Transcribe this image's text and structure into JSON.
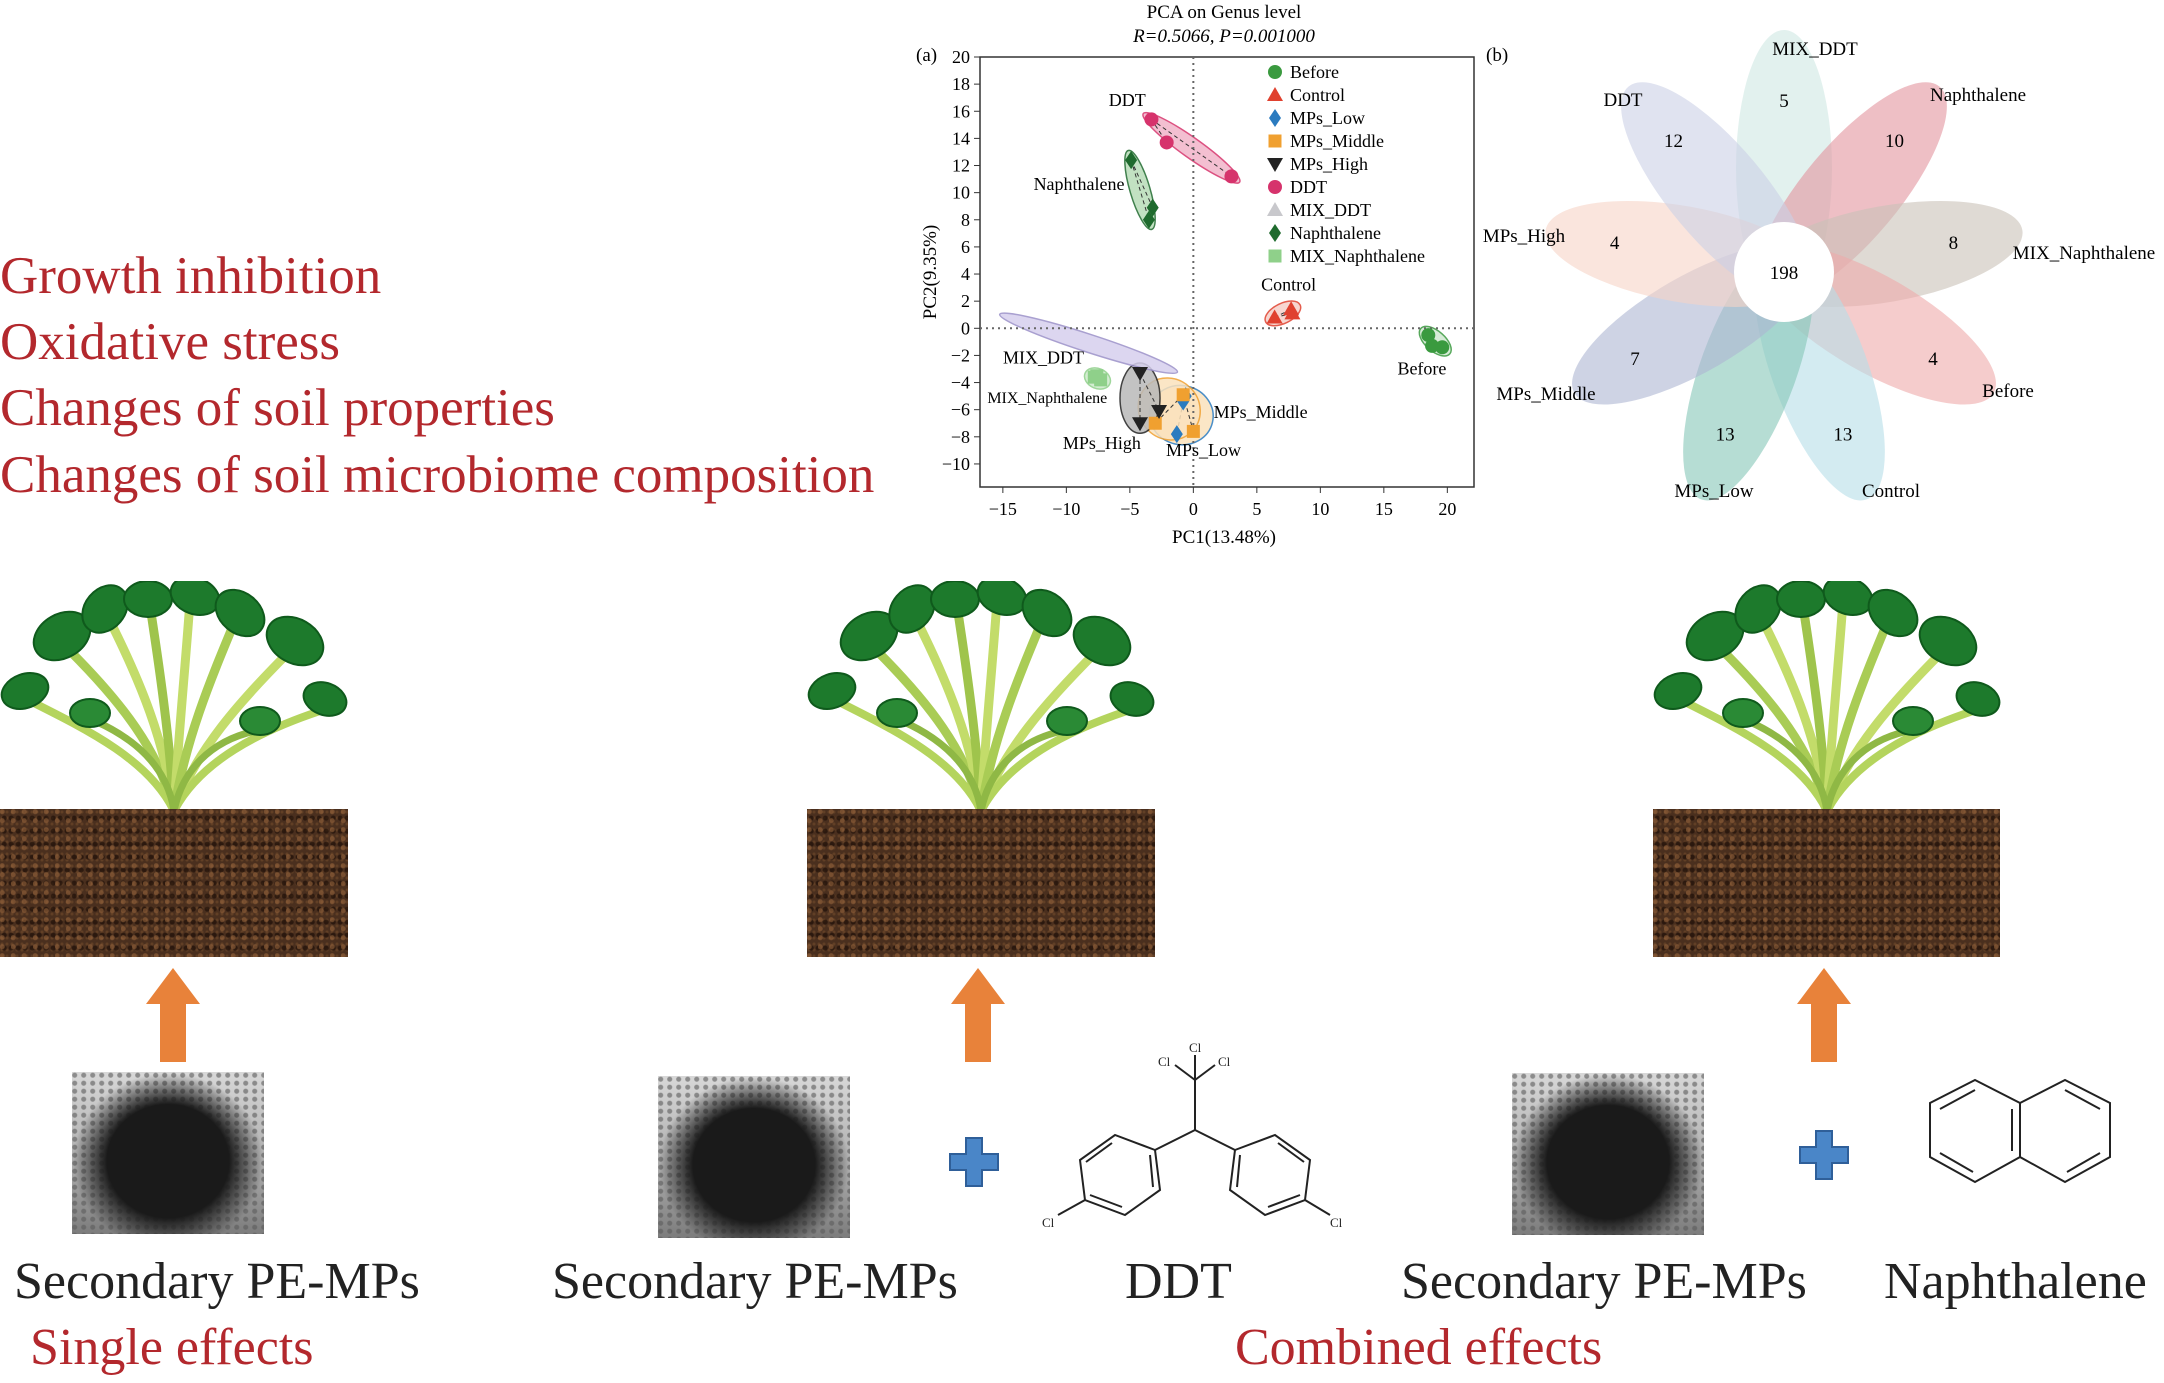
{
  "effects_list": [
    "Growth inhibition",
    "Oxidative stress",
    "Changes of soil properties",
    "Changes of soil microbiome composition"
  ],
  "panel_a": {
    "label": "(a)",
    "title": "PCA on Genus level",
    "subtitle": "R=0.5066, P=0.001000"
  },
  "panel_b": {
    "label": "(b)"
  },
  "chart_data": [
    {
      "type": "scatter",
      "title": "PCA on Genus level",
      "subtitle": "R=0.5066, P=0.001000",
      "xlabel": "PC1(13.48%)",
      "ylabel": "PC2(9.35%)",
      "xlim": [
        -16.8,
        22.1
      ],
      "ylim": [
        -11.7,
        20
      ],
      "xticks": [
        -15,
        -10,
        -5,
        0,
        5,
        10,
        15,
        20
      ],
      "yticks": [
        -10,
        -8,
        -6,
        -4,
        -2,
        0,
        2,
        4,
        6,
        8,
        10,
        12,
        14,
        16,
        18,
        20
      ],
      "reference_lines": {
        "x": 0,
        "y": 0,
        "style": "dotted"
      },
      "confidence_ellipses": true,
      "legend_position": "top-right",
      "series": [
        {
          "name": "Before",
          "marker": "circle",
          "color": "#3a9a3f",
          "points": [
            [
              18.5,
              -0.5
            ],
            [
              18.8,
              -1.3
            ],
            [
              19.6,
              -1.4
            ]
          ]
        },
        {
          "name": "Control",
          "marker": "triangle",
          "color": "#e0412f",
          "points": [
            [
              6.4,
              0.8
            ],
            [
              7.7,
              1.4
            ],
            [
              7.8,
              1.1
            ]
          ]
        },
        {
          "name": "MPs_Low",
          "marker": "diamond",
          "color": "#2b7bbf",
          "points": [
            [
              -0.8,
              -5.4
            ],
            [
              -1.3,
              -7.8
            ],
            [
              -0.6,
              -5.0
            ]
          ]
        },
        {
          "name": "MPs_Middle",
          "marker": "square",
          "color": "#f0a030",
          "points": [
            [
              -0.8,
              -4.9
            ],
            [
              -3.0,
              -7.0
            ],
            [
              0.0,
              -7.6
            ]
          ]
        },
        {
          "name": "MPs_High",
          "marker": "triangle-down",
          "color": "#222222",
          "points": [
            [
              -4.2,
              -3.3
            ],
            [
              -2.7,
              -6.1
            ],
            [
              -4.2,
              -7.0
            ]
          ]
        },
        {
          "name": "DDT",
          "marker": "circle",
          "color": "#d6336c",
          "points": [
            [
              -3.3,
              15.4
            ],
            [
              -2.1,
              13.7
            ],
            [
              3.0,
              11.2
            ]
          ]
        },
        {
          "name": "MIX_DDT",
          "marker": "triangle",
          "color": "#c8c8cc",
          "points": []
        },
        {
          "name": "Naphthalene",
          "marker": "diamond",
          "color": "#1f6b2e",
          "points": [
            [
              -4.9,
              12.4
            ],
            [
              -3.2,
              8.9
            ],
            [
              -3.5,
              8.0
            ]
          ]
        },
        {
          "name": "MIX_Naphthalene",
          "marker": "square",
          "color": "#8fd08a",
          "points": [
            [
              -7.6,
              -3.5
            ],
            [
              -7.3,
              -3.8
            ],
            [
              -7.8,
              -3.6
            ]
          ]
        }
      ],
      "annotations": [
        {
          "text": "DDT",
          "at": [
            -5.2,
            16.4
          ]
        },
        {
          "text": "Naphthalene",
          "at": [
            -9.0,
            10.2
          ]
        },
        {
          "text": "Control",
          "at": [
            7.5,
            2.8
          ]
        },
        {
          "text": "Before",
          "at": [
            18.0,
            -3.4
          ]
        },
        {
          "text": "MIX_DDT",
          "at": [
            -11.8,
            -2.6
          ]
        },
        {
          "text": "MIX_Naphthalene",
          "at": [
            -11.5,
            -5.5
          ]
        },
        {
          "text": "MPs_Middle",
          "at": [
            5.3,
            -6.6
          ]
        },
        {
          "text": "MPs_High",
          "at": [
            -7.2,
            -8.9
          ]
        },
        {
          "text": "MPs_Low",
          "at": [
            0.8,
            -9.4
          ]
        }
      ]
    },
    {
      "type": "venn-flower",
      "core_label": "198",
      "petals": [
        {
          "name": "MIX_DDT",
          "unique": 5,
          "color": "#cfe8e2"
        },
        {
          "name": "Naphthalene",
          "unique": 10,
          "color": "#e3959e"
        },
        {
          "name": "MIX_Naphthalene",
          "unique": 8,
          "color": "#c9c1b8"
        },
        {
          "name": "Before",
          "unique": 4,
          "color": "#eeaaaa"
        },
        {
          "name": "Control",
          "unique": 13,
          "color": "#b5dde8"
        },
        {
          "name": "MPs_Low",
          "unique": 13,
          "color": "#86c7b8"
        },
        {
          "name": "MPs_Middle",
          "unique": 7,
          "color": "#aeb5d2"
        },
        {
          "name": "MPs_High",
          "unique": 4,
          "color": "#f6d3c6"
        },
        {
          "name": "DDT",
          "unique": 12,
          "color": "#ccd0e6"
        }
      ]
    }
  ],
  "scenarios": [
    {
      "materials": [
        "Secondary PE-MPs"
      ]
    },
    {
      "materials": [
        "Secondary PE-MPs",
        "DDT"
      ]
    },
    {
      "materials": [
        "Secondary PE-MPs",
        "Naphthalene"
      ]
    }
  ],
  "effect_types": {
    "single": "Single effects",
    "combined": "Combined effects"
  },
  "structure_atom": "Cl",
  "colors": {
    "accent_red": "#b3282d",
    "arrow": "#e8823a",
    "plus": "#4a86c8"
  }
}
